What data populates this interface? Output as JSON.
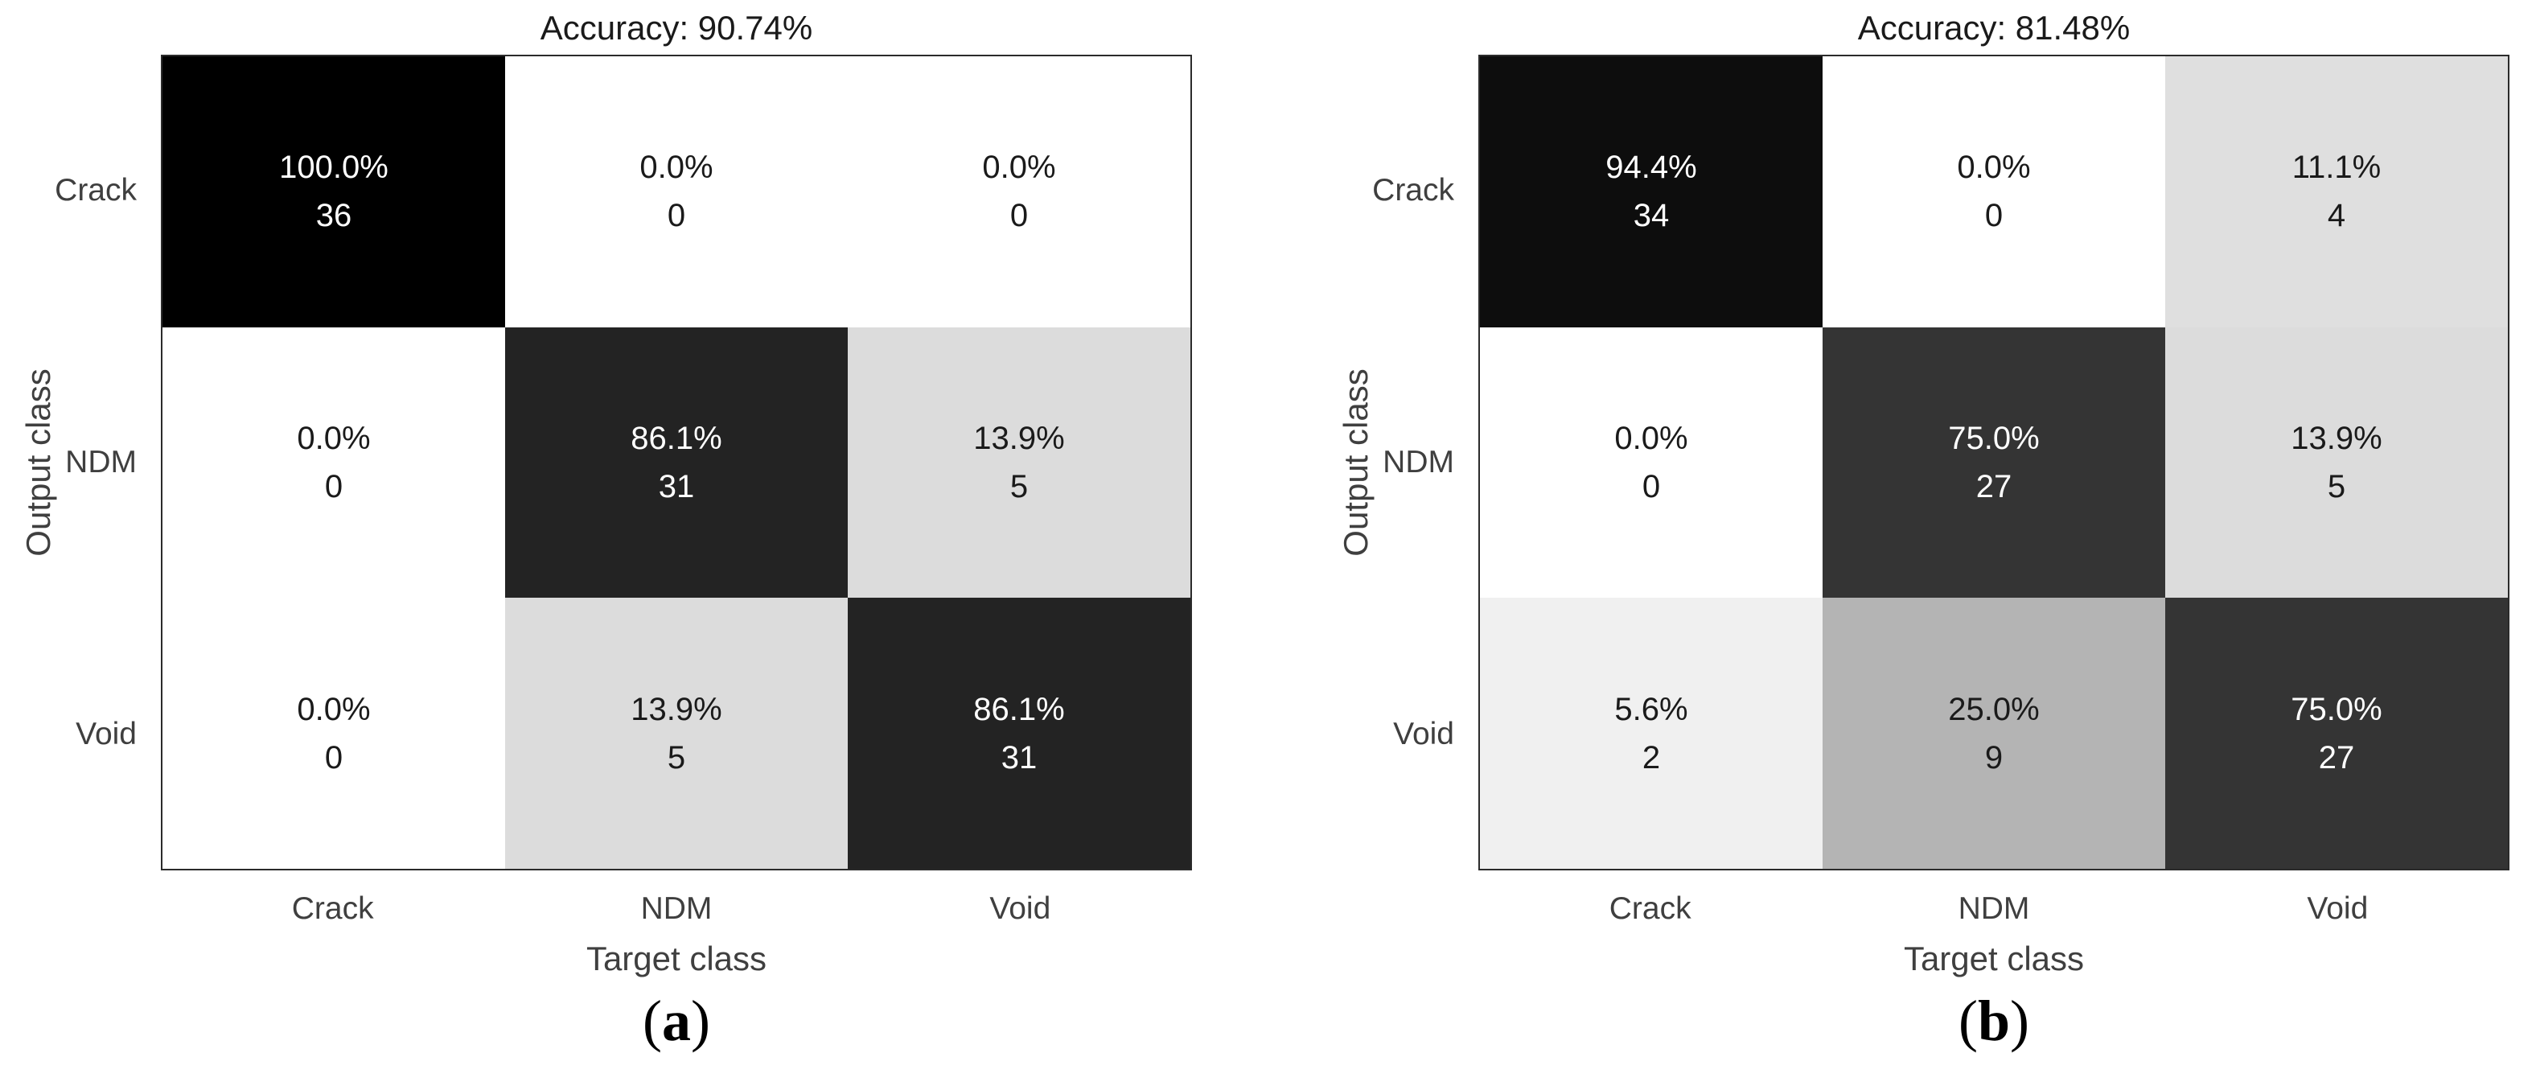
{
  "figure": {
    "panels": [
      {
        "title": "Accuracy: 90.74%",
        "ylabel": "Output class",
        "xlabel": "Target class",
        "row_labels": [
          "Crack",
          "NDM",
          "Void"
        ],
        "col_labels": [
          "Crack",
          "NDM",
          "Void"
        ],
        "caption": {
          "open": "(",
          "letter": "a",
          "close": ")"
        },
        "cells": [
          [
            {
              "pct": "100.0%",
              "count": "36",
              "bg": "#000000",
              "fg": "#ffffff"
            },
            {
              "pct": "0.0%",
              "count": "0",
              "bg": "#ffffff",
              "fg": "#1a1a1a"
            },
            {
              "pct": "0.0%",
              "count": "0",
              "bg": "#ffffff",
              "fg": "#1a1a1a"
            }
          ],
          [
            {
              "pct": "0.0%",
              "count": "0",
              "bg": "#ffffff",
              "fg": "#1a1a1a"
            },
            {
              "pct": "86.1%",
              "count": "31",
              "bg": "#232323",
              "fg": "#ffffff"
            },
            {
              "pct": "13.9%",
              "count": "5",
              "bg": "#dcdcdc",
              "fg": "#1a1a1a"
            }
          ],
          [
            {
              "pct": "0.0%",
              "count": "0",
              "bg": "#ffffff",
              "fg": "#1a1a1a"
            },
            {
              "pct": "13.9%",
              "count": "5",
              "bg": "#dcdcdc",
              "fg": "#1a1a1a"
            },
            {
              "pct": "86.1%",
              "count": "31",
              "bg": "#232323",
              "fg": "#ffffff"
            }
          ]
        ]
      },
      {
        "title": "Accuracy: 81.48%",
        "ylabel": "Output class",
        "xlabel": "Target class",
        "row_labels": [
          "Crack",
          "NDM",
          "Void"
        ],
        "col_labels": [
          "Crack",
          "NDM",
          "Void"
        ],
        "caption": {
          "open": "(",
          "letter": "b",
          "close": ")"
        },
        "cells": [
          [
            {
              "pct": "94.4%",
              "count": "34",
              "bg": "#0d0d0d",
              "fg": "#ffffff"
            },
            {
              "pct": "0.0%",
              "count": "0",
              "bg": "#ffffff",
              "fg": "#1a1a1a"
            },
            {
              "pct": "11.1%",
              "count": "4",
              "bg": "#dfdfdf",
              "fg": "#1a1a1a"
            }
          ],
          [
            {
              "pct": "0.0%",
              "count": "0",
              "bg": "#ffffff",
              "fg": "#1a1a1a"
            },
            {
              "pct": "75.0%",
              "count": "27",
              "bg": "#343434",
              "fg": "#ffffff"
            },
            {
              "pct": "13.9%",
              "count": "5",
              "bg": "#dcdcdc",
              "fg": "#1a1a1a"
            }
          ],
          [
            {
              "pct": "5.6%",
              "count": "2",
              "bg": "#f0f0f0",
              "fg": "#1a1a1a"
            },
            {
              "pct": "25.0%",
              "count": "9",
              "bg": "#b4b4b4",
              "fg": "#1a1a1a"
            },
            {
              "pct": "75.0%",
              "count": "27",
              "bg": "#343434",
              "fg": "#ffffff"
            }
          ]
        ]
      }
    ]
  },
  "chart_data": [
    {
      "type": "heatmap",
      "subtype": "confusion-matrix",
      "panel_label": "(a)",
      "title": "Accuracy: 90.74%",
      "accuracy_percent": 90.74,
      "xlabel": "Target class",
      "ylabel": "Output class",
      "x_categories": [
        "Crack",
        "NDM",
        "Void"
      ],
      "y_categories": [
        "Crack",
        "NDM",
        "Void"
      ],
      "values_percent": [
        [
          100.0,
          0.0,
          0.0
        ],
        [
          0.0,
          86.1,
          13.9
        ],
        [
          0.0,
          13.9,
          86.1
        ]
      ],
      "values_count": [
        [
          36,
          0,
          0
        ],
        [
          0,
          31,
          5
        ],
        [
          0,
          5,
          31
        ]
      ],
      "colormap": "white(0%) to black(100%)",
      "grid": false,
      "legend": false
    },
    {
      "type": "heatmap",
      "subtype": "confusion-matrix",
      "panel_label": "(b)",
      "title": "Accuracy: 81.48%",
      "accuracy_percent": 81.48,
      "xlabel": "Target class",
      "ylabel": "Output class",
      "x_categories": [
        "Crack",
        "NDM",
        "Void"
      ],
      "y_categories": [
        "Crack",
        "NDM",
        "Void"
      ],
      "values_percent": [
        [
          94.4,
          0.0,
          11.1
        ],
        [
          0.0,
          75.0,
          13.9
        ],
        [
          5.6,
          25.0,
          75.0
        ]
      ],
      "values_count": [
        [
          34,
          0,
          4
        ],
        [
          0,
          27,
          5
        ],
        [
          2,
          9,
          27
        ]
      ],
      "colormap": "white(0%) to black(100%)",
      "grid": false,
      "legend": false
    }
  ]
}
